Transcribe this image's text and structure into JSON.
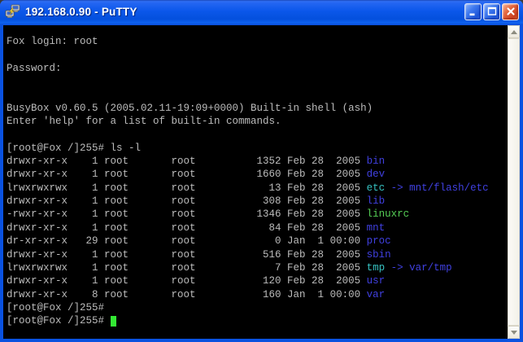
{
  "window": {
    "title": "192.168.0.90 - PuTTY",
    "controls": {
      "minimize": "minimize",
      "maximize": "maximize",
      "close": "close"
    }
  },
  "colors": {
    "titlebar_blue": "#0b57ea",
    "close_button_red": "#d8512b",
    "terminal_background": "#000000",
    "terminal_text": "#bcbcbc",
    "directory_blue": "#4040e0",
    "symlink_cyan": "#36c2c2",
    "executable_green": "#55cf55",
    "cursor_green": "#33e833"
  },
  "icons": {
    "app": "putty-two-terminals-icon",
    "scroll_up": "arrow-up-icon",
    "scroll_down": "arrow-down-icon"
  },
  "terminal": {
    "prompt": "[root@Fox /]255#",
    "lines": [
      {
        "segments": [
          {
            "t": "Fox login: root",
            "c": "fg"
          }
        ]
      },
      {
        "segments": []
      },
      {
        "segments": [
          {
            "t": "Password:",
            "c": "fg"
          }
        ]
      },
      {
        "segments": []
      },
      {
        "segments": []
      },
      {
        "segments": [
          {
            "t": "BusyBox v0.60.5 (2005.02.11-19:09+0000) Built-in shell (ash)",
            "c": "fg"
          }
        ]
      },
      {
        "segments": [
          {
            "t": "Enter 'help' for a list of built-in commands.",
            "c": "fg"
          }
        ]
      },
      {
        "segments": []
      },
      {
        "segments": [
          {
            "t": "[root@Fox /]255# ls -l",
            "c": "fg"
          }
        ]
      },
      {
        "segments": [
          {
            "t": "drwxr-xr-x    1 root       root          1352 Feb 28  2005 ",
            "c": "fg"
          },
          {
            "t": "bin",
            "c": "dir"
          }
        ]
      },
      {
        "segments": [
          {
            "t": "drwxr-xr-x    1 root       root          1660 Feb 28  2005 ",
            "c": "fg"
          },
          {
            "t": "dev",
            "c": "dir"
          }
        ]
      },
      {
        "segments": [
          {
            "t": "lrwxrwxrwx    1 root       root            13 Feb 28  2005 ",
            "c": "fg"
          },
          {
            "t": "etc",
            "c": "lnk"
          },
          {
            "t": " -> mnt/flash/etc",
            "c": "dir"
          }
        ]
      },
      {
        "segments": [
          {
            "t": "drwxr-xr-x    1 root       root           308 Feb 28  2005 ",
            "c": "fg"
          },
          {
            "t": "lib",
            "c": "dir"
          }
        ]
      },
      {
        "segments": [
          {
            "t": "-rwxr-xr-x    1 root       root          1346 Feb 28  2005 ",
            "c": "fg"
          },
          {
            "t": "linuxrc",
            "c": "exe"
          }
        ]
      },
      {
        "segments": [
          {
            "t": "drwxr-xr-x    1 root       root            84 Feb 28  2005 ",
            "c": "fg"
          },
          {
            "t": "mnt",
            "c": "dir"
          }
        ]
      },
      {
        "segments": [
          {
            "t": "dr-xr-xr-x   29 root       root             0 Jan  1 00:00 ",
            "c": "fg"
          },
          {
            "t": "proc",
            "c": "dir"
          }
        ]
      },
      {
        "segments": [
          {
            "t": "drwxr-xr-x    1 root       root           516 Feb 28  2005 ",
            "c": "fg"
          },
          {
            "t": "sbin",
            "c": "dir"
          }
        ]
      },
      {
        "segments": [
          {
            "t": "lrwxrwxrwx    1 root       root             7 Feb 28  2005 ",
            "c": "fg"
          },
          {
            "t": "tmp",
            "c": "lnk"
          },
          {
            "t": " -> var/tmp",
            "c": "dir"
          }
        ]
      },
      {
        "segments": [
          {
            "t": "drwxr-xr-x    1 root       root           120 Feb 28  2005 ",
            "c": "fg"
          },
          {
            "t": "usr",
            "c": "dir"
          }
        ]
      },
      {
        "segments": [
          {
            "t": "drwxr-xr-x    8 root       root           160 Jan  1 00:00 ",
            "c": "fg"
          },
          {
            "t": "var",
            "c": "dir"
          }
        ]
      },
      {
        "segments": [
          {
            "t": "[root@Fox /]255#",
            "c": "fg"
          }
        ]
      },
      {
        "segments": [
          {
            "t": "[root@Fox /]255# ",
            "c": "fg"
          },
          {
            "t": " ",
            "c": "cur"
          }
        ]
      }
    ]
  }
}
